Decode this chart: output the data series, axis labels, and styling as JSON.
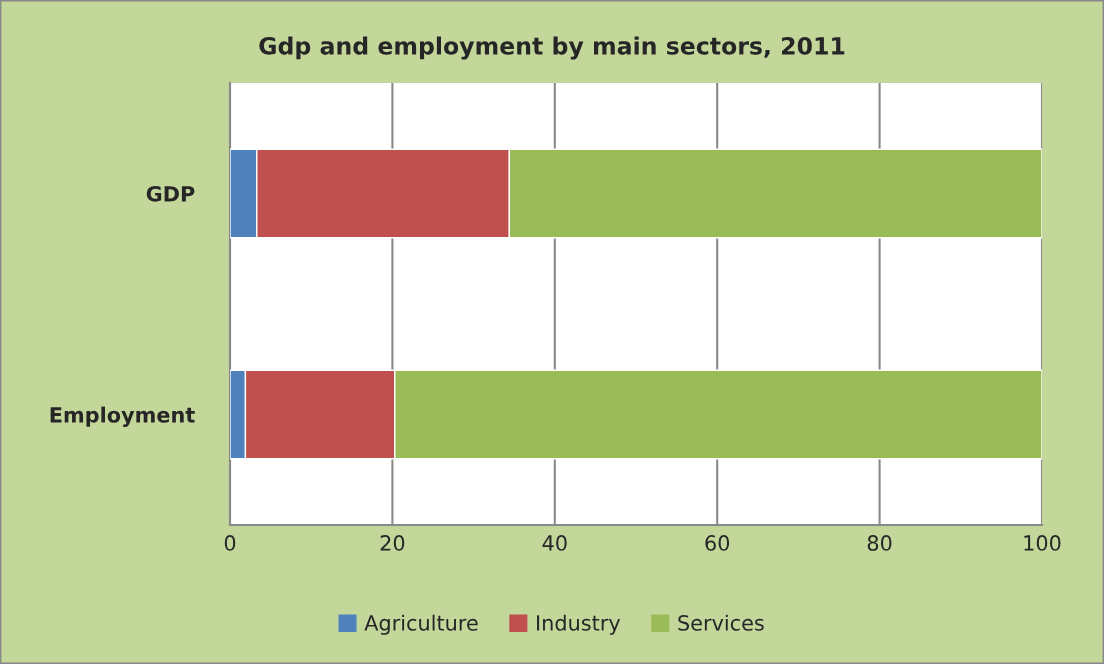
{
  "chart_data": {
    "type": "bar",
    "orientation": "horizontal",
    "stacked": true,
    "title": "Gdp and employment by main sectors, 2011",
    "categories": [
      "GDP",
      "Employment"
    ],
    "series": [
      {
        "name": "Agriculture",
        "color": "#4f81bd",
        "values": [
          3.3,
          1.9
        ]
      },
      {
        "name": "Industry",
        "color": "#c0504d",
        "values": [
          31.1,
          18.4
        ]
      },
      {
        "name": "Services",
        "color": "#9bbb59",
        "values": [
          65.6,
          79.7
        ]
      }
    ],
    "xlim": [
      0,
      100
    ],
    "xticks": [
      0,
      20,
      40,
      60,
      80,
      100
    ],
    "grid": "x",
    "legend": "bottom"
  }
}
